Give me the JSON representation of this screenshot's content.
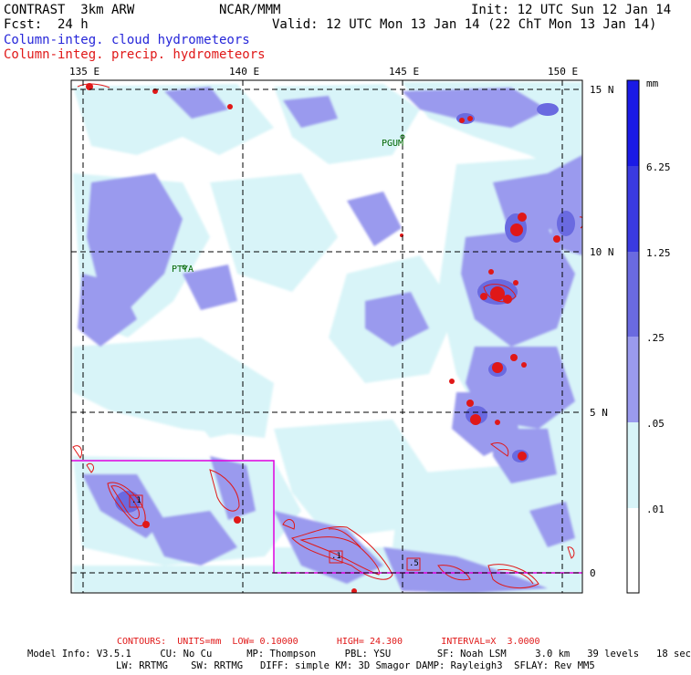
{
  "header": {
    "model": "CONTRAST  3km ARW",
    "org": "NCAR/MMM",
    "init": "Init: 12 UTC Sun 12 Jan 14",
    "fcst": "Fcst:  24 h",
    "valid": "Valid: 12 UTC Mon 13 Jan 14 (22 ChT Mon 13 Jan 14)",
    "field_cloud": "Column-integ. cloud hydrometeors",
    "field_precip": "Column-integ. precip. hydrometeors"
  },
  "colors": {
    "cloud_text": "#2626d9",
    "precip_text": "#e01818",
    "frame": "#000000",
    "box": "#e000e0"
  },
  "map": {
    "lon_labels": [
      "135 E",
      "140 E",
      "145 E",
      "150 E"
    ],
    "lat_labels": [
      "15 N",
      "10 N",
      "5 N",
      "0"
    ],
    "stations": [
      "PGUM",
      "PTYA"
    ],
    "point_labels": [
      ".1",
      ".1",
      ".5"
    ]
  },
  "colorbar": {
    "units": "mm",
    "levels": [
      "6.25",
      "1.25",
      ".25",
      ".05",
      ".01"
    ],
    "fills": [
      "#1a1ae6",
      "#3a3ae0",
      "#6a6ae0",
      "#9a9aee",
      "#d8f4f8",
      "#ffffff"
    ]
  },
  "footer": {
    "contours": "CONTOURS:  UNITS=mm  LOW= 0.10000       HIGH= 24.300       INTERVAL=X  3.0000",
    "model_info": "Model Info: V3.5.1     CU: No Cu      MP: Thompson     PBL: YSU        SF: Noah LSM     3.0 km   39 levels   18 sec",
    "model_info2": "LW: RRTMG    SW: RRTMG   DIFF: simple KM: 3D Smagor DAMP: Rayleigh3  SFLAY: Rev MM5"
  }
}
